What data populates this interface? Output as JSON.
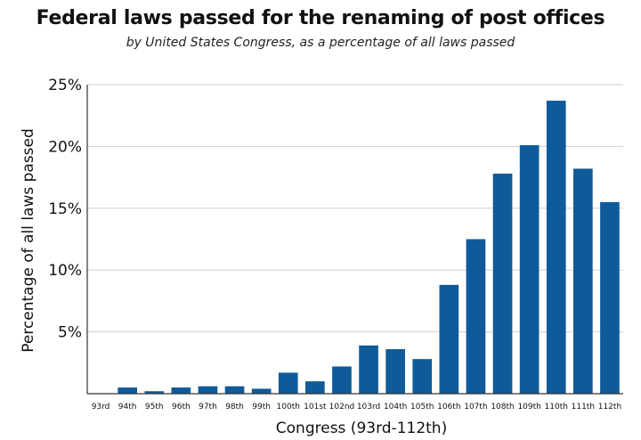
{
  "chart_data": {
    "type": "bar",
    "title": "Federal laws passed for the renaming of post offices",
    "subtitle": "by United States Congress, as a percentage of all laws passed",
    "xlabel": "Congress (93rd-112th)",
    "ylabel": "Percentage of all laws passed",
    "categories": [
      "93rd",
      "94th",
      "95th",
      "96th",
      "97th",
      "98th",
      "99th",
      "100th",
      "101st",
      "102nd",
      "103rd",
      "104th",
      "105th",
      "106th",
      "107th",
      "108th",
      "109th",
      "110th",
      "111th",
      "112th"
    ],
    "values": [
      0.0,
      0.5,
      0.2,
      0.5,
      0.6,
      0.6,
      0.4,
      1.7,
      1.0,
      2.2,
      3.9,
      3.6,
      2.8,
      8.8,
      12.5,
      17.8,
      20.1,
      23.7,
      18.2,
      15.5
    ],
    "yticks": [
      5,
      10,
      15,
      20,
      25
    ],
    "ytick_labels": [
      "5%",
      "10%",
      "15%",
      "20%",
      "25%"
    ],
    "ylim": [
      0,
      25
    ],
    "grid": true,
    "bar_color": "#0f5b99",
    "grid_color": "#cfcfcf",
    "axis_color": "#333333"
  }
}
